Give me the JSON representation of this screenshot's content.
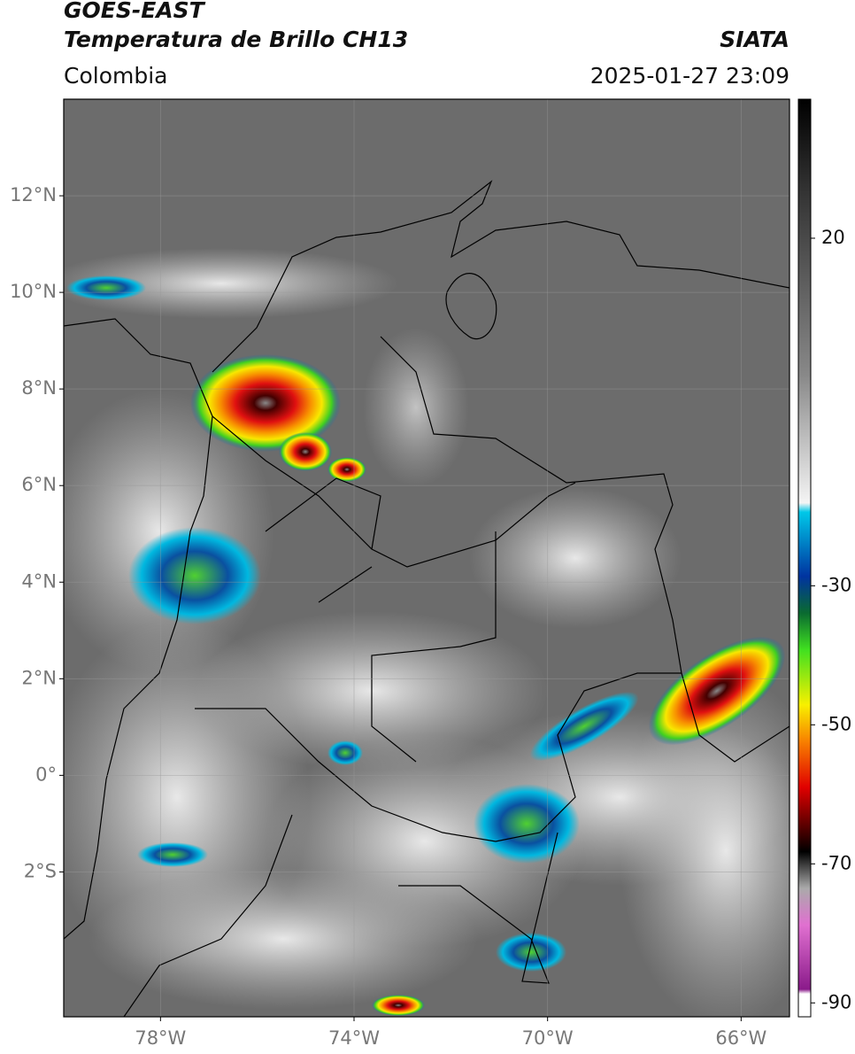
{
  "chart_data": {
    "type": "map",
    "title": "GOES-EAST",
    "subtitle": "Temperatura de Brillo CH13",
    "source": "SIATA",
    "region": "Colombia",
    "timestamp": "2025-01-27 23:09",
    "xlim": [
      -80,
      -65
    ],
    "ylim": [
      -5,
      14
    ],
    "xticks": [
      {
        "value": -78,
        "label": "78°W"
      },
      {
        "value": -74,
        "label": "74°W"
      },
      {
        "value": -70,
        "label": "70°W"
      },
      {
        "value": -66,
        "label": "66°W"
      }
    ],
    "yticks": [
      {
        "value": 12,
        "label": "12°N"
      },
      {
        "value": 10,
        "label": "10°N"
      },
      {
        "value": 8,
        "label": "8°N"
      },
      {
        "value": 6,
        "label": "6°N"
      },
      {
        "value": 4,
        "label": "4°N"
      },
      {
        "value": 2,
        "label": "2°N"
      },
      {
        "value": 0,
        "label": "0°"
      },
      {
        "value": -2,
        "label": "2°S"
      }
    ],
    "grid": true,
    "colorbar": {
      "lim": [
        -92,
        40
      ],
      "ticks": [
        20,
        -30,
        -50,
        -70,
        -90
      ]
    }
  }
}
